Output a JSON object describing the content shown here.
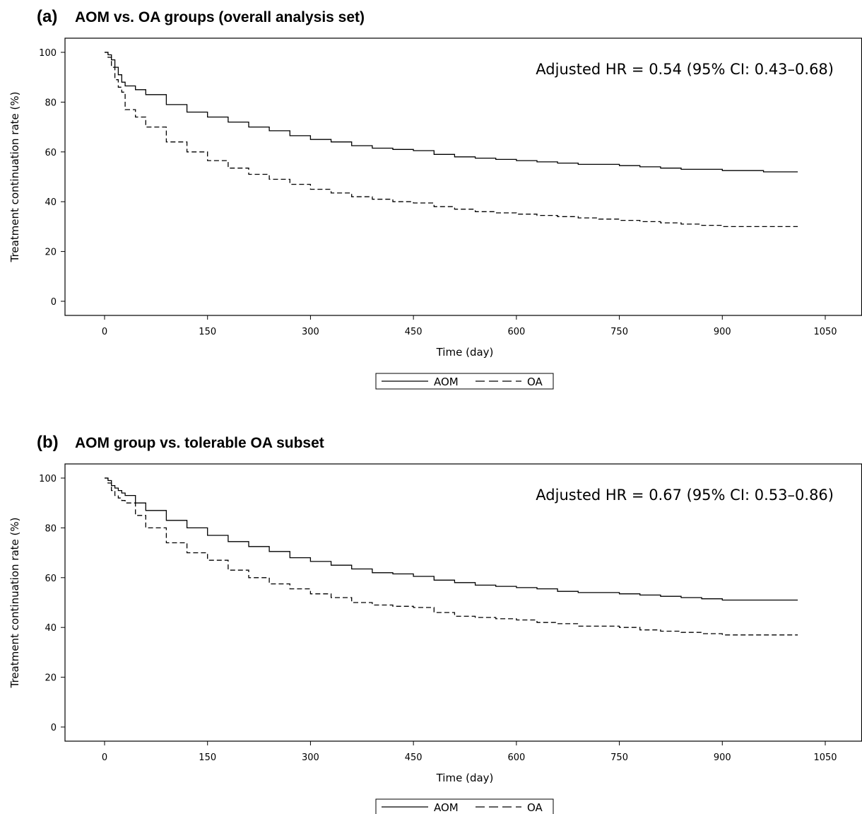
{
  "chart_data": [
    {
      "type": "line",
      "panel_tag": "(a)",
      "title": "AOM vs. OA groups (overall analysis set)",
      "xlabel": "Time (day)",
      "ylabel": "Treatment continuation rate (%)",
      "xlim": [
        -20,
        1230
      ],
      "ylim": [
        -5,
        105
      ],
      "xticks": [
        0,
        150,
        300,
        450,
        600,
        750,
        900,
        1050
      ],
      "yticks": [
        0,
        20,
        40,
        60,
        80,
        100
      ],
      "annotation": "Adjusted HR = 0.54 (95% CI: 0.43–0.68)",
      "legend": {
        "placement": "bottom-center",
        "entries": [
          {
            "label": "AOM",
            "style": "solid"
          },
          {
            "label": "OA",
            "style": "dashed"
          }
        ]
      },
      "series": [
        {
          "name": "AOM",
          "style": "solid",
          "step": true,
          "x": [
            0,
            5,
            10,
            15,
            20,
            25,
            30,
            45,
            60,
            90,
            120,
            150,
            180,
            210,
            240,
            270,
            300,
            330,
            360,
            390,
            420,
            450,
            480,
            510,
            540,
            570,
            600,
            630,
            660,
            690,
            720,
            750,
            780,
            810,
            840,
            870,
            900,
            930,
            960,
            990,
            1010
          ],
          "y": [
            100,
            99,
            97,
            94,
            91,
            88,
            86.5,
            85,
            83,
            79,
            76,
            74,
            72,
            70,
            68.5,
            66.5,
            65,
            64,
            62.5,
            61.5,
            61,
            60.5,
            59,
            58,
            57.5,
            57,
            56.5,
            56,
            55.5,
            55,
            55,
            54.5,
            54,
            53.5,
            53,
            53,
            52.5,
            52.5,
            52,
            52,
            52
          ]
        },
        {
          "name": "OA",
          "style": "dashed",
          "step": true,
          "x": [
            0,
            5,
            10,
            15,
            20,
            25,
            30,
            45,
            60,
            90,
            120,
            150,
            180,
            210,
            240,
            270,
            300,
            330,
            360,
            390,
            420,
            450,
            480,
            510,
            540,
            570,
            600,
            630,
            660,
            690,
            720,
            750,
            780,
            810,
            840,
            870,
            900,
            930,
            960,
            990,
            1010
          ],
          "y": [
            100,
            98,
            94,
            89,
            86,
            84,
            77,
            74,
            70,
            64,
            60,
            56.5,
            53.5,
            51,
            49,
            47,
            45,
            43.5,
            42,
            41,
            40,
            39.5,
            38,
            37,
            36,
            35.5,
            35,
            34.5,
            34,
            33.5,
            33,
            32.5,
            32,
            31.5,
            31,
            30.5,
            30,
            30,
            30,
            30,
            30
          ]
        }
      ]
    },
    {
      "type": "line",
      "panel_tag": "(b)",
      "title": "AOM group vs. tolerable OA subset",
      "xlabel": "Time (day)",
      "ylabel": "Treatment continuation rate (%)",
      "xlim": [
        -20,
        1230
      ],
      "ylim": [
        -5,
        105
      ],
      "xticks": [
        0,
        150,
        300,
        450,
        600,
        750,
        900,
        1050
      ],
      "yticks": [
        0,
        20,
        40,
        60,
        80,
        100
      ],
      "annotation": "Adjusted HR = 0.67 (95% CI: 0.53–0.86)",
      "legend": {
        "placement": "bottom-center",
        "entries": [
          {
            "label": "AOM",
            "style": "solid"
          },
          {
            "label": "OA",
            "style": "dashed"
          }
        ]
      },
      "series": [
        {
          "name": "AOM",
          "style": "solid",
          "step": true,
          "x": [
            0,
            5,
            10,
            15,
            20,
            25,
            30,
            45,
            60,
            90,
            120,
            150,
            180,
            210,
            240,
            270,
            300,
            330,
            360,
            390,
            420,
            450,
            480,
            510,
            540,
            570,
            600,
            630,
            660,
            690,
            720,
            750,
            780,
            810,
            840,
            870,
            900,
            930,
            960,
            990,
            1010
          ],
          "y": [
            100,
            99,
            97,
            96,
            95,
            94,
            93,
            90,
            87,
            83,
            80,
            77,
            74.5,
            72.5,
            70.5,
            68,
            66.5,
            65,
            63.5,
            62,
            61.5,
            60.5,
            59,
            58,
            57,
            56.5,
            56,
            55.5,
            54.5,
            54,
            54,
            53.5,
            53,
            52.5,
            52,
            51.5,
            51,
            51,
            51,
            51,
            51
          ]
        },
        {
          "name": "OA",
          "style": "dashed",
          "step": true,
          "x": [
            0,
            5,
            10,
            15,
            20,
            25,
            30,
            45,
            60,
            90,
            120,
            150,
            180,
            210,
            240,
            270,
            300,
            330,
            360,
            390,
            420,
            450,
            480,
            510,
            540,
            570,
            600,
            630,
            660,
            690,
            720,
            750,
            780,
            810,
            840,
            870,
            900,
            930,
            960,
            990,
            1010
          ],
          "y": [
            100,
            98,
            95,
            93,
            92,
            91,
            90,
            85,
            80,
            74,
            70,
            67,
            63,
            60,
            57.5,
            55.5,
            53.5,
            52,
            50,
            49,
            48.5,
            48,
            46,
            44.5,
            44,
            43.5,
            43,
            42,
            41.5,
            40.5,
            40.5,
            40,
            39,
            38.5,
            38,
            37.5,
            37,
            37,
            37,
            37,
            37
          ]
        }
      ]
    }
  ]
}
